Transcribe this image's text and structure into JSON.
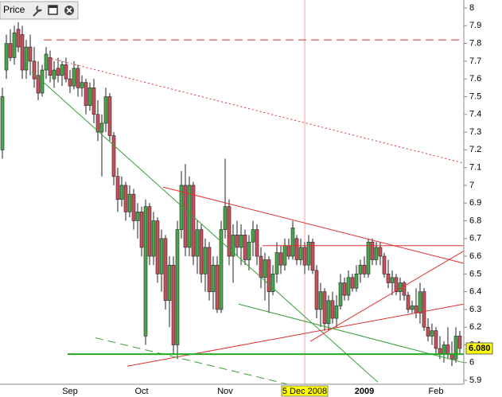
{
  "chart_data": {
    "type": "candlestick",
    "title": "Price",
    "up_color": "#4aa64a",
    "down_color": "#c8505a",
    "ylim": [
      5.878,
      8.045
    ],
    "yticks": [
      5.9,
      6,
      6.1,
      6.2,
      6.3,
      6.4,
      6.5,
      6.6,
      6.7,
      6.8,
      6.9,
      7,
      7.1,
      7.2,
      7.3,
      7.4,
      7.5,
      7.6,
      7.7,
      7.8,
      7.9,
      8
    ],
    "categories": [
      null,
      null,
      null,
      null,
      null,
      null,
      null,
      null,
      null,
      null,
      null,
      null,
      null,
      null,
      null,
      null,
      null,
      "Sep",
      null,
      null,
      null,
      null,
      null,
      null,
      null,
      null,
      null,
      null,
      null,
      null,
      null,
      null,
      null,
      null,
      null,
      "Oct",
      null,
      null,
      null,
      null,
      null,
      null,
      null,
      null,
      null,
      null,
      null,
      null,
      null,
      null,
      null,
      null,
      null,
      null,
      null,
      null,
      "Nov",
      null,
      null,
      null,
      null,
      null,
      null,
      null,
      null,
      null,
      null,
      null,
      null,
      null,
      null,
      null,
      null,
      null,
      null,
      null,
      "5 Dec 2008",
      null,
      null,
      null,
      null,
      null,
      null,
      null,
      null,
      null,
      null,
      null,
      null,
      null,
      null,
      "2009",
      null,
      null,
      null,
      null,
      null,
      null,
      null,
      null,
      null,
      null,
      null,
      null,
      null,
      null,
      null,
      null,
      null,
      "Feb",
      null,
      null,
      null,
      null,
      null,
      null
    ],
    "crosshair_index": 76,
    "ohlc": [
      [
        7.2,
        7.55,
        7.15,
        7.5
      ],
      [
        7.65,
        7.85,
        7.6,
        7.8
      ],
      [
        7.8,
        7.88,
        7.7,
        7.72
      ],
      [
        7.72,
        7.9,
        7.68,
        7.86
      ],
      [
        7.88,
        7.92,
        7.75,
        7.78
      ],
      [
        7.85,
        7.9,
        7.6,
        7.65
      ],
      [
        7.65,
        7.82,
        7.6,
        7.78
      ],
      [
        7.78,
        7.85,
        7.62,
        7.7
      ],
      [
        7.7,
        7.78,
        7.55,
        7.6
      ],
      [
        7.62,
        7.7,
        7.48,
        7.52
      ],
      [
        7.52,
        7.68,
        7.5,
        7.65
      ],
      [
        7.65,
        7.78,
        7.6,
        7.74
      ],
      [
        7.72,
        7.76,
        7.58,
        7.62
      ],
      [
        7.6,
        7.7,
        7.55,
        7.65
      ],
      [
        7.66,
        7.72,
        7.58,
        7.62
      ],
      [
        7.62,
        7.7,
        7.56,
        7.68
      ],
      [
        7.68,
        7.72,
        7.58,
        7.6
      ],
      [
        7.6,
        7.65,
        7.52,
        7.56
      ],
      [
        7.56,
        7.7,
        7.54,
        7.66
      ],
      [
        7.66,
        7.68,
        7.5,
        7.55
      ],
      [
        7.55,
        7.62,
        7.5,
        7.58
      ],
      [
        7.58,
        7.6,
        7.4,
        7.45
      ],
      [
        7.45,
        7.58,
        7.42,
        7.55
      ],
      [
        7.55,
        7.6,
        7.35,
        7.4
      ],
      [
        7.4,
        7.48,
        7.25,
        7.3
      ],
      [
        7.3,
        7.4,
        7.05,
        7.35
      ],
      [
        7.35,
        7.55,
        7.3,
        7.5
      ],
      [
        7.5,
        7.52,
        7.25,
        7.28
      ],
      [
        7.28,
        7.3,
        7.0,
        7.05
      ],
      [
        7.05,
        7.1,
        6.85,
        6.92
      ],
      [
        6.92,
        7.05,
        6.88,
        7.0
      ],
      [
        7.0,
        7.02,
        6.8,
        6.85
      ],
      [
        6.85,
        7.0,
        6.82,
        6.95
      ],
      [
        6.95,
        6.98,
        6.75,
        6.8
      ],
      [
        6.8,
        6.9,
        6.7,
        6.85
      ],
      [
        6.85,
        6.88,
        6.6,
        6.65
      ],
      [
        6.15,
        6.92,
        6.1,
        6.88
      ],
      [
        6.88,
        6.9,
        6.55,
        6.6
      ],
      [
        6.6,
        6.85,
        6.55,
        6.8
      ],
      [
        6.8,
        6.82,
        6.45,
        6.5
      ],
      [
        6.5,
        6.75,
        6.4,
        6.7
      ],
      [
        6.7,
        6.72,
        6.3,
        6.35
      ],
      [
        6.35,
        6.6,
        6.2,
        6.55
      ],
      [
        6.55,
        6.6,
        6.05,
        6.1
      ],
      [
        6.1,
        6.8,
        6.02,
        6.75
      ],
      [
        6.75,
        7.08,
        6.7,
        7.0
      ],
      [
        7.0,
        7.12,
        6.6,
        6.65
      ],
      [
        6.65,
        7.05,
        6.6,
        7.0
      ],
      [
        7.0,
        7.02,
        6.55,
        6.6
      ],
      [
        6.6,
        6.8,
        6.5,
        6.75
      ],
      [
        6.75,
        6.78,
        6.45,
        6.5
      ],
      [
        6.5,
        6.7,
        6.4,
        6.65
      ],
      [
        6.65,
        6.68,
        6.35,
        6.4
      ],
      [
        6.4,
        6.6,
        6.3,
        6.55
      ],
      [
        6.55,
        6.6,
        6.28,
        6.3
      ],
      [
        6.3,
        6.8,
        6.28,
        6.75
      ],
      [
        6.75,
        7.15,
        6.7,
        6.88
      ],
      [
        6.88,
        6.92,
        6.55,
        6.6
      ],
      [
        6.6,
        6.78,
        6.45,
        6.72
      ],
      [
        6.72,
        6.8,
        6.6,
        6.65
      ],
      [
        6.65,
        6.78,
        6.55,
        6.72
      ],
      [
        6.72,
        6.75,
        6.55,
        6.58
      ],
      [
        6.58,
        6.72,
        6.52,
        6.68
      ],
      [
        6.68,
        6.8,
        6.6,
        6.75
      ],
      [
        6.75,
        6.78,
        6.55,
        6.6
      ],
      [
        6.6,
        6.65,
        6.42,
        6.48
      ],
      [
        6.48,
        6.62,
        6.35,
        6.58
      ],
      [
        6.58,
        6.6,
        6.28,
        6.4
      ],
      [
        6.4,
        6.55,
        6.38,
        6.5
      ],
      [
        6.5,
        6.68,
        6.45,
        6.62
      ],
      [
        6.62,
        6.66,
        6.5,
        6.55
      ],
      [
        6.55,
        6.7,
        6.52,
        6.66
      ],
      [
        6.66,
        6.7,
        6.58,
        6.6
      ],
      [
        6.6,
        6.8,
        6.58,
        6.76
      ],
      [
        6.7,
        6.72,
        6.55,
        6.58
      ],
      [
        6.58,
        6.7,
        6.55,
        6.65
      ],
      [
        6.65,
        6.68,
        6.5,
        6.55
      ],
      [
        6.55,
        6.72,
        6.52,
        6.68
      ],
      [
        6.68,
        6.7,
        6.5,
        6.52
      ],
      [
        6.52,
        6.55,
        6.25,
        6.3
      ],
      [
        6.3,
        6.45,
        6.2,
        6.4
      ],
      [
        6.4,
        6.42,
        6.18,
        6.22
      ],
      [
        6.22,
        6.38,
        6.18,
        6.35
      ],
      [
        6.35,
        6.4,
        6.22,
        6.25
      ],
      [
        6.25,
        6.38,
        6.2,
        6.32
      ],
      [
        6.32,
        6.5,
        6.3,
        6.45
      ],
      [
        6.45,
        6.48,
        6.35,
        6.38
      ],
      [
        6.38,
        6.52,
        6.35,
        6.48
      ],
      [
        6.48,
        6.5,
        6.4,
        6.42
      ],
      [
        6.42,
        6.55,
        6.4,
        6.5
      ],
      [
        6.5,
        6.58,
        6.45,
        6.55
      ],
      [
        6.55,
        6.6,
        6.48,
        6.5
      ],
      [
        6.5,
        6.7,
        6.48,
        6.68
      ],
      [
        6.68,
        6.7,
        6.55,
        6.58
      ],
      [
        6.58,
        6.68,
        6.55,
        6.65
      ],
      [
        6.65,
        6.68,
        6.55,
        6.6
      ],
      [
        6.6,
        6.62,
        6.48,
        6.5
      ],
      [
        6.5,
        6.58,
        6.42,
        6.45
      ],
      [
        6.45,
        6.52,
        6.38,
        6.48
      ],
      [
        6.48,
        6.5,
        6.38,
        6.4
      ],
      [
        6.4,
        6.48,
        6.35,
        6.45
      ],
      [
        6.45,
        6.46,
        6.35,
        6.38
      ],
      [
        6.38,
        6.4,
        6.28,
        6.3
      ],
      [
        6.3,
        6.35,
        6.28,
        6.32
      ],
      [
        6.32,
        6.42,
        6.25,
        6.28
      ],
      [
        6.28,
        6.45,
        6.22,
        6.4
      ],
      [
        6.4,
        6.42,
        6.18,
        6.2
      ],
      [
        6.2,
        6.25,
        6.12,
        6.15
      ],
      [
        6.15,
        6.22,
        6.1,
        6.18
      ],
      [
        6.18,
        6.2,
        6.05,
        6.08
      ],
      [
        6.08,
        6.15,
        6.02,
        6.05
      ],
      [
        6.05,
        6.12,
        6.0,
        6.1
      ],
      [
        6.1,
        6.2,
        6.02,
        6.05
      ],
      [
        6.05,
        6.12,
        5.98,
        6.02
      ],
      [
        6.02,
        6.2,
        6.0,
        6.15
      ],
      [
        6.15,
        6.18,
        6.05,
        6.08
      ]
    ],
    "last_price": {
      "value": 6.08,
      "label": "6.080"
    },
    "overlays": [
      {
        "color": "#e03030",
        "style": "dashed",
        "x": [
          10.4,
          116
        ],
        "y": [
          7.82,
          7.82
        ]
      },
      {
        "color": "#e03030",
        "style": "dotted",
        "x": [
          11.4,
          116
        ],
        "y": [
          7.72,
          7.125
        ]
      },
      {
        "color": "#3aa03a",
        "style": "solid",
        "x": [
          7.4,
          94.4
        ],
        "y": [
          7.64,
          5.89
        ]
      },
      {
        "color": "#e03030",
        "style": "solid",
        "x": [
          40.4,
          116
        ],
        "y": [
          6.99,
          6.56
        ]
      },
      {
        "color": "#e03030",
        "style": "solid",
        "x": [
          65.4,
          116
        ],
        "y": [
          6.66,
          6.66
        ]
      },
      {
        "color": "#e03030",
        "style": "solid",
        "x": [
          31.4,
          116
        ],
        "y": [
          5.98,
          6.33
        ]
      },
      {
        "color": "#e03030",
        "style": "solid",
        "x": [
          77.4,
          116
        ],
        "y": [
          6.12,
          6.63
        ]
      },
      {
        "color": "#3aa03a",
        "style": "solid",
        "x": [
          59.4,
          116
        ],
        "y": [
          6.33,
          6.0
        ]
      },
      {
        "color": "#3aa03a",
        "style": "dashed",
        "x": [
          23.4,
          71.4
        ],
        "y": [
          6.14,
          5.88
        ]
      },
      {
        "color": "#22aa22",
        "style": "thick",
        "x": [
          16.4,
          116
        ],
        "y": [
          6.048,
          6.048
        ]
      }
    ]
  }
}
